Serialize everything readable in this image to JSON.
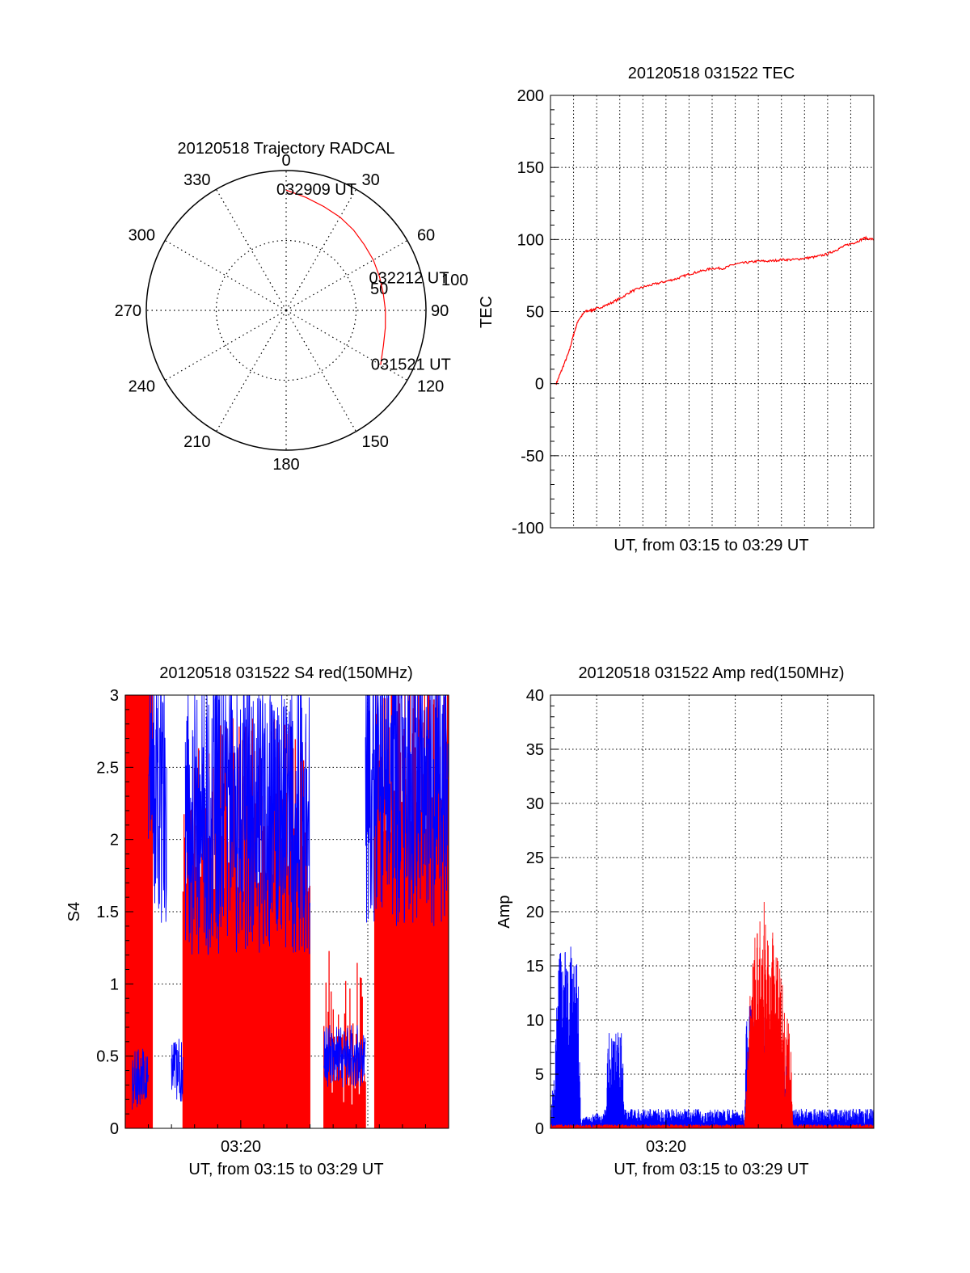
{
  "chart_data": [
    {
      "type": "polar",
      "title": "20120518 Trajectory RADCAL",
      "angular_ticks": [
        "0",
        "30",
        "60",
        "90",
        "120",
        "150",
        "180",
        "210",
        "240",
        "270",
        "300",
        "330"
      ],
      "radial_ticks": [
        "50",
        "100"
      ],
      "rmax": 100,
      "grid": true,
      "trajectory": {
        "color": "#ff0000",
        "points": [
          {
            "az": 0,
            "r": 86
          },
          {
            "az": 10,
            "r": 82
          },
          {
            "az": 20,
            "r": 79
          },
          {
            "az": 30,
            "r": 77
          },
          {
            "az": 40,
            "r": 75
          },
          {
            "az": 50,
            "r": 73
          },
          {
            "az": 60,
            "r": 72
          },
          {
            "az": 70,
            "r": 71
          },
          {
            "az": 80,
            "r": 70.5
          },
          {
            "az": 90,
            "r": 71
          },
          {
            "az": 100,
            "r": 72
          },
          {
            "az": 110,
            "r": 74
          },
          {
            "az": 118,
            "r": 77
          },
          {
            "az": 120,
            "r": 78
          }
        ]
      },
      "annotations": [
        {
          "text": "032909 UT",
          "az": 0,
          "r": 86
        },
        {
          "text": "032212 UT",
          "az": 71,
          "r": 70
        },
        {
          "text": "031521 UT",
          "az": 120,
          "r": 78
        }
      ]
    },
    {
      "type": "line",
      "title": "20120518 031522 TEC",
      "xlabel": "UT, from 03:15 to 03:29 UT",
      "ylabel": "TEC",
      "ylim": [
        -100,
        200
      ],
      "yticks": [
        -100,
        -50,
        0,
        50,
        100,
        150,
        200
      ],
      "xlim_min": [
        0,
        14
      ],
      "grid": true,
      "series": [
        {
          "color": "#ff0000",
          "x": [
            0.25,
            0.5,
            0.8,
            1.0,
            1.2,
            1.5,
            1.8,
            2.0,
            2.5,
            3.0,
            3.5,
            4.0,
            4.5,
            5.0,
            5.5,
            6.0,
            6.5,
            7.0,
            7.5,
            8.0,
            8.5,
            9.0,
            9.5,
            10.0,
            10.5,
            11.0,
            11.5,
            12.0,
            12.4,
            12.8,
            13.2,
            13.6,
            14.0
          ],
          "y": [
            0,
            10,
            22,
            34,
            44,
            50,
            51,
            52,
            55,
            59,
            64,
            67,
            69,
            71,
            73,
            76,
            78,
            80,
            80,
            83,
            84,
            85,
            85,
            86,
            86,
            87,
            88,
            90,
            93,
            96,
            98,
            101,
            100
          ]
        }
      ]
    },
    {
      "type": "line",
      "title": "20120518 031522 S4 red(150MHz)",
      "xlabel": "UT, from 03:15 to 03:29 UT",
      "ylabel": "S4",
      "ylim": [
        0,
        3
      ],
      "yticks": [
        "0",
        "0.5",
        "1",
        "1.5",
        "2",
        "2.5",
        "3"
      ],
      "xtick_labels": [
        "03:20"
      ],
      "grid": true,
      "series": [
        {
          "color": "#0000ff",
          "note_segments": [
            [
              0.3,
              1.0,
              0.35
            ],
            [
              1.0,
              1.8,
              2.4
            ],
            [
              2.0,
              2.5,
              0.4
            ],
            [
              2.6,
              8.0,
              2.2
            ],
            [
              8.6,
              10.4,
              0.5
            ],
            [
              10.4,
              14.0,
              2.4
            ]
          ]
        },
        {
          "color": "#ff0000",
          "note_segments": [
            [
              0.0,
              1.2,
              3.0
            ],
            [
              2.5,
              8.0,
              2.0
            ],
            [
              8.6,
              10.4,
              0.4
            ],
            [
              10.8,
              14.0,
              2.4
            ]
          ]
        }
      ]
    },
    {
      "type": "line",
      "title": "20120518 031522 Amp red(150MHz)",
      "xlabel": "UT, from 03:15 to 03:29 UT",
      "ylabel": "Amp",
      "ylim": [
        0,
        40
      ],
      "yticks": [
        "0",
        "5",
        "10",
        "15",
        "20",
        "25",
        "30",
        "35",
        "40"
      ],
      "xtick_labels": [
        "03:20"
      ],
      "grid": true,
      "series": [
        {
          "color": "#0000ff",
          "envelope": [
            [
              0.0,
              0.3
            ],
            [
              0.4,
              12
            ],
            [
              1.2,
              12
            ],
            [
              1.3,
              0.5
            ],
            [
              2.4,
              1.0
            ],
            [
              2.5,
              6.5
            ],
            [
              3.1,
              6.5
            ],
            [
              3.2,
              1.0
            ],
            [
              8.4,
              1.0
            ],
            [
              8.5,
              9.0
            ],
            [
              10.3,
              5.0
            ],
            [
              10.4,
              1.0
            ],
            [
              14.0,
              1.0
            ]
          ]
        },
        {
          "color": "#ff0000",
          "envelope": [
            [
              0.0,
              0.2
            ],
            [
              8.4,
              0.2
            ],
            [
              8.6,
              8
            ],
            [
              9.0,
              16
            ],
            [
              9.5,
              14
            ],
            [
              10.0,
              10
            ],
            [
              10.4,
              6
            ],
            [
              10.5,
              0.2
            ],
            [
              14.0,
              0.2
            ]
          ]
        }
      ]
    }
  ]
}
